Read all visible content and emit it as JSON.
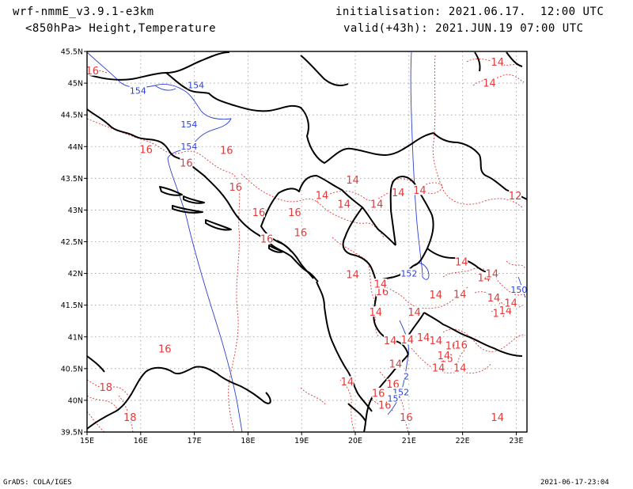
{
  "header": {
    "model": "wrf-nmmE_v3.9.1-e3km",
    "field": "<850hPa> Height,Temperature",
    "init": "initialisation: 2021.06.17.  12:00 UTC",
    "valid": "valid(+43h): 2021.JUN.19 07:00 UTC"
  },
  "footer": {
    "left": "GrADS: COLA/IGES",
    "right": "2021-06-17-23:04"
  },
  "map": {
    "lon_range": [
      15,
      23.2
    ],
    "lat_range": [
      39.5,
      45.5
    ],
    "lon_ticks": [
      {
        "v": 15,
        "label": "15E"
      },
      {
        "v": 16,
        "label": "16E"
      },
      {
        "v": 17,
        "label": "17E"
      },
      {
        "v": 18,
        "label": "18E"
      },
      {
        "v": 19,
        "label": "19E"
      },
      {
        "v": 20,
        "label": "20E"
      },
      {
        "v": 21,
        "label": "21E"
      },
      {
        "v": 22,
        "label": "22E"
      },
      {
        "v": 23,
        "label": "23E"
      }
    ],
    "lat_ticks": [
      {
        "v": 39.5,
        "label": "39.5N"
      },
      {
        "v": 40,
        "label": "40N"
      },
      {
        "v": 40.5,
        "label": "40.5N"
      },
      {
        "v": 41,
        "label": "41N"
      },
      {
        "v": 41.5,
        "label": "41.5N"
      },
      {
        "v": 42,
        "label": "42N"
      },
      {
        "v": 42.5,
        "label": "42.5N"
      },
      {
        "v": 43,
        "label": "43N"
      },
      {
        "v": 43.5,
        "label": "43.5N"
      },
      {
        "v": 44,
        "label": "44N"
      },
      {
        "v": 44.5,
        "label": "44.5N"
      },
      {
        "v": 45,
        "label": "45N"
      },
      {
        "v": 45.5,
        "label": "45.5N"
      }
    ],
    "colors": {
      "temperature": "#e23a3a",
      "height": "#2a3fd6",
      "coast": "#000000",
      "grid": "#9a9a9a"
    },
    "temperature_labels": [
      {
        "t": "16",
        "lon": 15.1,
        "lat": 45.18
      },
      {
        "t": "16",
        "lon": 16.1,
        "lat": 43.94
      },
      {
        "t": "16",
        "lon": 16.85,
        "lat": 43.73
      },
      {
        "t": "16",
        "lon": 17.6,
        "lat": 43.93
      },
      {
        "t": "16",
        "lon": 17.77,
        "lat": 43.35
      },
      {
        "t": "16",
        "lon": 18.2,
        "lat": 42.95
      },
      {
        "t": "16",
        "lon": 18.87,
        "lat": 42.95
      },
      {
        "t": "16",
        "lon": 18.98,
        "lat": 42.63
      },
      {
        "t": "16",
        "lon": 18.35,
        "lat": 42.53
      },
      {
        "t": "16",
        "lon": 16.45,
        "lat": 40.8
      },
      {
        "t": "16",
        "lon": 20.5,
        "lat": 41.7
      },
      {
        "t": "16",
        "lon": 20.43,
        "lat": 40.1
      },
      {
        "t": "16",
        "lon": 20.55,
        "lat": 39.91
      },
      {
        "t": "16",
        "lon": 20.7,
        "lat": 40.24
      },
      {
        "t": "16",
        "lon": 20.95,
        "lat": 39.72
      },
      {
        "t": "16",
        "lon": 21.8,
        "lat": 40.85
      },
      {
        "t": "16",
        "lon": 21.7,
        "lat": 40.65
      },
      {
        "t": "16",
        "lon": 21.97,
        "lat": 40.86
      },
      {
        "t": "18",
        "lon": 15.35,
        "lat": 40.19
      },
      {
        "t": "18",
        "lon": 15.8,
        "lat": 39.72
      },
      {
        "t": "14",
        "lon": 19.38,
        "lat": 43.22
      },
      {
        "t": "14",
        "lon": 19.95,
        "lat": 43.46
      },
      {
        "t": "14",
        "lon": 19.79,
        "lat": 43.08
      },
      {
        "t": "14",
        "lon": 20.4,
        "lat": 43.08
      },
      {
        "t": "14",
        "lon": 20.8,
        "lat": 43.26
      },
      {
        "t": "14",
        "lon": 21.2,
        "lat": 43.3
      },
      {
        "t": "14",
        "lon": 21.98,
        "lat": 42.17
      },
      {
        "t": "14",
        "lon": 22.4,
        "lat": 41.92
      },
      {
        "t": "14",
        "lon": 22.55,
        "lat": 41.98
      },
      {
        "t": "14",
        "lon": 19.95,
        "lat": 41.97
      },
      {
        "t": "14",
        "lon": 20.47,
        "lat": 41.82
      },
      {
        "t": "14",
        "lon": 21.5,
        "lat": 41.65
      },
      {
        "t": "14",
        "lon": 21.95,
        "lat": 41.66
      },
      {
        "t": "14",
        "lon": 22.58,
        "lat": 41.6
      },
      {
        "t": "14",
        "lon": 22.68,
        "lat": 41.36
      },
      {
        "t": "14",
        "lon": 22.8,
        "lat": 41.4
      },
      {
        "t": "14",
        "lon": 22.9,
        "lat": 41.52
      },
      {
        "t": "14",
        "lon": 20.38,
        "lat": 41.38
      },
      {
        "t": "14",
        "lon": 21.1,
        "lat": 41.38
      },
      {
        "t": "14",
        "lon": 20.65,
        "lat": 40.93
      },
      {
        "t": "14",
        "lon": 20.97,
        "lat": 40.94
      },
      {
        "t": "14",
        "lon": 21.27,
        "lat": 40.98
      },
      {
        "t": "14",
        "lon": 21.5,
        "lat": 40.93
      },
      {
        "t": "14",
        "lon": 20.75,
        "lat": 40.56
      },
      {
        "t": "14",
        "lon": 21.65,
        "lat": 40.69
      },
      {
        "t": "14",
        "lon": 21.55,
        "lat": 40.5
      },
      {
        "t": "14",
        "lon": 21.95,
        "lat": 40.5
      },
      {
        "t": "14",
        "lon": 19.85,
        "lat": 40.28
      },
      {
        "t": "14",
        "lon": 22.65,
        "lat": 39.72
      },
      {
        "t": "14",
        "lon": 22.65,
        "lat": 45.32
      },
      {
        "t": "14",
        "lon": 22.5,
        "lat": 44.99
      },
      {
        "t": "12",
        "lon": 22.98,
        "lat": 43.21
      }
    ],
    "height_labels": [
      {
        "t": "154",
        "lon": 17.03,
        "lat": 44.96
      },
      {
        "t": "154",
        "lon": 15.95,
        "lat": 44.87
      },
      {
        "t": "154",
        "lon": 16.9,
        "lat": 44.34
      },
      {
        "t": "154",
        "lon": 16.9,
        "lat": 43.99
      },
      {
        "t": "152",
        "lon": 21.0,
        "lat": 41.99
      },
      {
        "t": "152",
        "lon": 20.85,
        "lat": 40.12
      },
      {
        "t": "15",
        "lon": 20.7,
        "lat": 40.02
      },
      {
        "t": "2",
        "lon": 20.95,
        "lat": 40.37
      },
      {
        "t": "150",
        "lon": 23.05,
        "lat": 41.73
      }
    ]
  }
}
